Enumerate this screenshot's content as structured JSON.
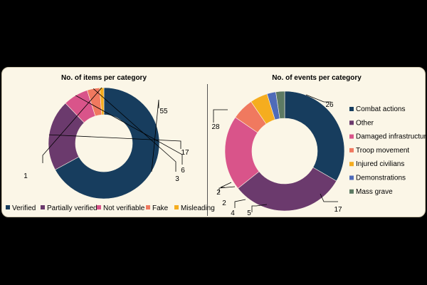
{
  "chart_data": [
    {
      "type": "pie",
      "title": "No. of items per category",
      "categories": [
        "Verified",
        "Partially verified",
        "Not verifiable",
        "Fake",
        "Misleading"
      ],
      "values": [
        55,
        17,
        6,
        3,
        1
      ],
      "colors": [
        "#173d5e",
        "#6b3a6d",
        "#d9548a",
        "#f0795f",
        "#f5ad1f"
      ],
      "legend": "bottom"
    },
    {
      "type": "pie",
      "title": "No. of events per category",
      "categories": [
        "Combat actions",
        "Other",
        "Damaged infrastructure",
        "Troop movement",
        "Injured civilians",
        "Demonstrations",
        "Mass grave"
      ],
      "values": [
        28,
        26,
        17,
        5,
        4,
        2,
        2
      ],
      "colors": [
        "#173d5e",
        "#6b3a6d",
        "#d9548a",
        "#f0795f",
        "#f5ad1f",
        "#4f6bb8",
        "#5d7a63"
      ],
      "legend": "right"
    }
  ]
}
